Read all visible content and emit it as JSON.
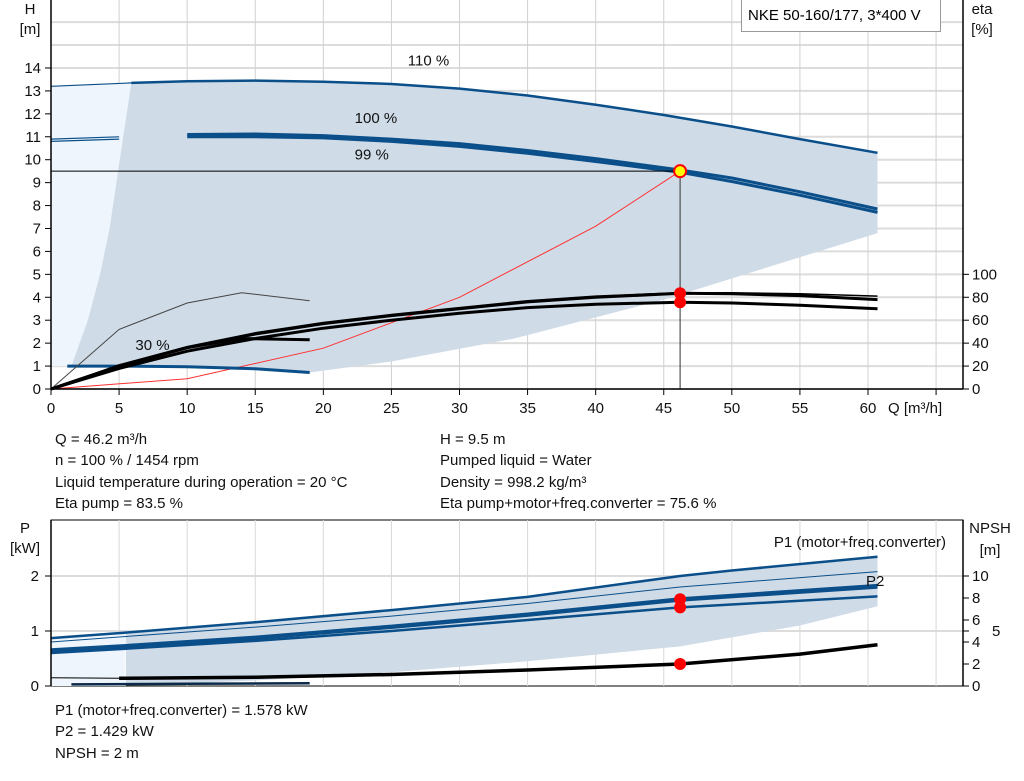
{
  "chart_data": [
    {
      "type": "line",
      "title": "NKE 50-160/177, 3*400 V",
      "xlabel": "Q [m³/h]",
      "ylabel": "H [m]",
      "ylabel_unit": "[m]",
      "ylabel_name": "H",
      "y2label_name": "eta",
      "y2label_unit": "[%]",
      "xlim": [
        0,
        67
      ],
      "ylim": [
        0,
        17
      ],
      "y2lim": [
        0,
        100
      ],
      "x_ticks": [
        0,
        5,
        10,
        15,
        20,
        25,
        30,
        35,
        40,
        45,
        50,
        55,
        60
      ],
      "y_ticks": [
        0,
        1,
        2,
        3,
        4,
        5,
        6,
        7,
        8,
        9,
        10,
        11,
        12,
        13,
        14
      ],
      "y2_ticks": [
        0,
        20,
        40,
        60,
        80,
        100
      ],
      "grid": true,
      "colors": {
        "head": "#0b4f8a",
        "eta": "#000000",
        "system": "#ff3030",
        "band": "#cfdbe7",
        "band_light": "#eef5fd",
        "point": "#ff0000",
        "duty_fill": "#ffff00"
      },
      "curve_labels": [
        "110 %",
        "100 %",
        "99 %",
        "30 %"
      ],
      "head_curves": [
        {
          "speed": "110 %",
          "points": [
            [
              0,
              13.2
            ],
            [
              5.9,
              13.35
            ],
            [
              10,
              13.42
            ],
            [
              15,
              13.45
            ],
            [
              20,
              13.4
            ],
            [
              25,
              13.3
            ],
            [
              30,
              13.1
            ],
            [
              35,
              12.8
            ],
            [
              40,
              12.4
            ],
            [
              45,
              11.95
            ],
            [
              50,
              11.45
            ],
            [
              55,
              10.9
            ],
            [
              60.7,
              10.3
            ]
          ]
        },
        {
          "speed": "100 %",
          "points": [
            [
              0,
              10.9
            ],
            [
              5,
              11.0
            ],
            [
              10,
              11.1
            ],
            [
              15,
              11.12
            ],
            [
              20,
              11.05
            ],
            [
              25,
              10.9
            ],
            [
              30,
              10.7
            ],
            [
              35,
              10.4
            ],
            [
              40,
              10.05
            ],
            [
              46.2,
              9.55
            ],
            [
              50,
              9.2
            ],
            [
              55,
              8.6
            ],
            [
              60.7,
              7.85
            ]
          ]
        },
        {
          "speed": "99 %",
          "points": [
            [
              0,
              10.8
            ],
            [
              5,
              10.9
            ],
            [
              10,
              11.0
            ],
            [
              15,
              11.0
            ],
            [
              20,
              10.95
            ],
            [
              25,
              10.8
            ],
            [
              30,
              10.58
            ],
            [
              35,
              10.28
            ],
            [
              40,
              9.92
            ],
            [
              46.2,
              9.45
            ],
            [
              50,
              9.05
            ],
            [
              55,
              8.45
            ],
            [
              60.7,
              7.7
            ]
          ]
        },
        {
          "speed": "30 %",
          "points": [
            [
              1.2,
              1.0
            ],
            [
              5,
              1.0
            ],
            [
              10,
              0.97
            ],
            [
              15,
              0.88
            ],
            [
              19,
              0.72
            ]
          ]
        }
      ],
      "system_curve": [
        [
          0,
          0
        ],
        [
          10,
          0.45
        ],
        [
          20,
          1.78
        ],
        [
          30,
          4.0
        ],
        [
          40,
          7.1
        ],
        [
          46.2,
          9.5
        ]
      ],
      "eta_curves": [
        {
          "points": [
            [
              0,
              0
            ],
            [
              5,
              21
            ],
            [
              10,
              37
            ],
            [
              15,
              49
            ],
            [
              20,
              58
            ],
            [
              25,
              65
            ],
            [
              30,
              71
            ],
            [
              35,
              77
            ],
            [
              40,
              81
            ],
            [
              46.2,
              84
            ],
            [
              50,
              84
            ],
            [
              55,
              83
            ],
            [
              60.7,
              81
            ]
          ]
        },
        {
          "points": [
            [
              0,
              0
            ],
            [
              5,
              20
            ],
            [
              10,
              36
            ],
            [
              15,
              48
            ],
            [
              20,
              57
            ],
            [
              25,
              64
            ],
            [
              30,
              70
            ],
            [
              35,
              76
            ],
            [
              40,
              80
            ],
            [
              46.2,
              83.5
            ],
            [
              50,
              83
            ],
            [
              55,
              81.5
            ],
            [
              60.7,
              78
            ]
          ]
        },
        {
          "points": [
            [
              0,
              0
            ],
            [
              5,
              18
            ],
            [
              10,
              33
            ],
            [
              15,
              44
            ],
            [
              20,
              53
            ],
            [
              25,
              60
            ],
            [
              30,
              66
            ],
            [
              35,
              71
            ],
            [
              40,
              74
            ],
            [
              46.2,
              75.6
            ],
            [
              50,
              75
            ],
            [
              55,
              73
            ],
            [
              60.7,
              70
            ]
          ]
        },
        {
          "points": [
            [
              0,
              0
            ],
            [
              5,
              52
            ],
            [
              10,
              75
            ],
            [
              14,
              84
            ],
            [
              19,
              77
            ]
          ]
        },
        {
          "points": [
            [
              0,
              0
            ],
            [
              5,
              20
            ],
            [
              10,
              36
            ],
            [
              14,
              44
            ],
            [
              19,
              43
            ]
          ]
        }
      ],
      "duty_point": {
        "Q": 46.2,
        "H": 9.5,
        "eta_pump": 83.5,
        "eta_total": 75.6
      }
    },
    {
      "type": "line",
      "ylabel_name": "P",
      "ylabel_unit": "[kW]",
      "y2label_name": "NPSH",
      "y2label_unit": "[m]",
      "xlim": [
        0,
        67
      ],
      "ylim": [
        0,
        3
      ],
      "y2lim": [
        0,
        15
      ],
      "y_ticks": [
        0,
        1,
        2
      ],
      "y2_ticks": [
        0,
        2,
        4,
        5,
        6,
        8,
        10
      ],
      "grid": true,
      "series_labels": [
        "P1 (motor+freq.converter)",
        "P2"
      ],
      "power_curves": [
        {
          "points": [
            [
              0,
              0.87
            ],
            [
              5.5,
              0.97
            ],
            [
              15,
              1.16
            ],
            [
              25,
              1.38
            ],
            [
              35,
              1.62
            ],
            [
              46.2,
              2.0
            ],
            [
              50,
              2.1
            ],
            [
              60.7,
              2.35
            ]
          ],
          "weight": "thick"
        },
        {
          "points": [
            [
              0,
              0.8
            ],
            [
              5.5,
              0.9
            ],
            [
              15,
              1.07
            ],
            [
              25,
              1.27
            ],
            [
              35,
              1.5
            ],
            [
              46.2,
              1.8
            ],
            [
              60.7,
              2.08
            ]
          ],
          "weight": "thin"
        },
        {
          "points": [
            [
              0,
              0.65
            ],
            [
              5,
              0.72
            ],
            [
              15,
              0.88
            ],
            [
              25,
              1.08
            ],
            [
              35,
              1.3
            ],
            [
              46.2,
              1.578
            ],
            [
              60.7,
              1.82
            ]
          ],
          "weight": "thick"
        },
        {
          "points": [
            [
              0,
              0.63
            ],
            [
              5,
              0.7
            ],
            [
              15,
              0.86
            ],
            [
              25,
              1.06
            ],
            [
              35,
              1.28
            ],
            [
              46.2,
              1.555
            ],
            [
              60.7,
              1.79
            ]
          ],
          "weight": "thick"
        },
        {
          "points": [
            [
              0,
              0.6
            ],
            [
              5,
              0.67
            ],
            [
              15,
              0.82
            ],
            [
              25,
              1.0
            ],
            [
              35,
              1.2
            ],
            [
              46.2,
              1.429
            ],
            [
              60.7,
              1.63
            ]
          ],
          "weight": "thick"
        },
        {
          "points": [
            [
              1.5,
              0.03
            ],
            [
              10,
              0.04
            ],
            [
              19,
              0.05
            ]
          ],
          "weight": "thick"
        }
      ],
      "npsh_curve": [
        [
          0,
          0.75
        ],
        [
          5,
          0.7
        ],
        [
          15,
          0.8
        ],
        [
          25,
          1.05
        ],
        [
          35,
          1.45
        ],
        [
          46.2,
          2.0
        ],
        [
          55,
          2.9
        ],
        [
          60.7,
          3.75
        ]
      ],
      "duty_point": {
        "Q": 46.2,
        "P1": 1.578,
        "P2": 1.429,
        "NPSH": 2
      }
    }
  ],
  "info": {
    "left": [
      "Q = 46.2 m³/h",
      "n = 100 % / 1454 rpm",
      "Liquid temperature during operation = 20 °C",
      "Eta pump = 83.5 %"
    ],
    "right": [
      "H = 9.5 m",
      "Pumped liquid = Water",
      "Density = 998.2 kg/m³",
      "Eta pump+motor+freq.converter = 75.6 %"
    ],
    "bottom": [
      "P1 (motor+freq.converter) = 1.578 kW",
      "P2 = 1.429 kW",
      "NPSH = 2 m"
    ]
  }
}
